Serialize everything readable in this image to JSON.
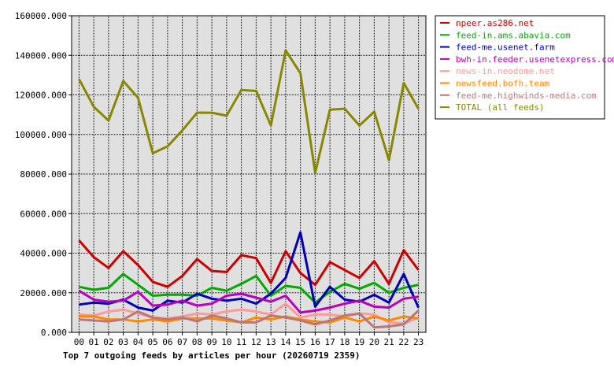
{
  "chart_data": {
    "type": "line",
    "title": "Top 7 outgoing feeds by articles per hour (20260719 2359)",
    "xlabel": "",
    "ylabel": "",
    "categories": [
      "00",
      "01",
      "02",
      "03",
      "04",
      "05",
      "06",
      "07",
      "08",
      "09",
      "10",
      "11",
      "12",
      "13",
      "14",
      "15",
      "16",
      "17",
      "18",
      "19",
      "20",
      "21",
      "22",
      "23"
    ],
    "ylim": [
      0,
      160000
    ],
    "yticks": [
      "0.000",
      "20000.000",
      "40000.000",
      "60000.000",
      "80000.000",
      "100000.000",
      "120000.000",
      "140000.000",
      "160000.000"
    ],
    "ytick_values": [
      0,
      20000,
      40000,
      60000,
      80000,
      100000,
      120000,
      140000,
      160000
    ],
    "grid": true,
    "legend_position": "right",
    "series": [
      {
        "name": "npeer.as286.net",
        "color": "#cc0000",
        "values": [
          46500,
          38000,
          32500,
          41000,
          34000,
          25500,
          23000,
          28500,
          37000,
          31000,
          30500,
          39000,
          37500,
          25000,
          41000,
          30000,
          24000,
          35500,
          31500,
          27500,
          36000,
          24500,
          41500,
          31500
        ]
      },
      {
        "name": "feed-in.ams.abavia.com",
        "color": "#00aa00",
        "values": [
          23000,
          21500,
          22500,
          29500,
          24000,
          18500,
          19000,
          19000,
          18500,
          22500,
          21000,
          24500,
          28500,
          18500,
          23500,
          22500,
          15000,
          20500,
          24500,
          22000,
          25000,
          20000,
          22500,
          24000
        ]
      },
      {
        "name": "feed-me.usenet.farm",
        "color": "#0000bb",
        "values": [
          14000,
          15000,
          14500,
          16500,
          12500,
          11000,
          16000,
          15000,
          19500,
          17000,
          16000,
          17000,
          14500,
          19500,
          27500,
          50500,
          13000,
          23000,
          16500,
          15500,
          19000,
          15000,
          29500,
          12500
        ]
      },
      {
        "name": "bwh-in.feeder.usenetexpress.com",
        "color": "#bb00bb",
        "values": [
          21000,
          16500,
          15500,
          16000,
          20500,
          13500,
          14000,
          16000,
          13500,
          14500,
          18500,
          19500,
          17500,
          15500,
          18500,
          10000,
          11000,
          12500,
          14500,
          16000,
          13000,
          12500,
          17000,
          18000
        ]
      },
      {
        "name": "news-in.neodome.net",
        "color": "#ff9999",
        "values": [
          9000,
          8500,
          10500,
          11500,
          9500,
          7500,
          7000,
          8000,
          9500,
          9000,
          10500,
          11500,
          10500,
          9000,
          14500,
          7500,
          9000,
          9000,
          8000,
          9500,
          9000,
          5000,
          4500,
          7500
        ]
      },
      {
        "name": "newsfeed.bofh.team",
        "color": "#ff8800",
        "values": [
          8000,
          8000,
          6500,
          6500,
          5500,
          6500,
          5500,
          7000,
          7000,
          7000,
          6000,
          5000,
          7500,
          6500,
          8000,
          6500,
          5500,
          5000,
          7500,
          5500,
          8000,
          6000,
          8000,
          7000
        ]
      },
      {
        "name": "feed-me.highwinds-media.com",
        "color": "#bb7777",
        "values": [
          6500,
          6000,
          5500,
          6500,
          10500,
          7500,
          6500,
          7500,
          5500,
          8500,
          7000,
          5000,
          5000,
          8500,
          7500,
          6000,
          4000,
          6000,
          8500,
          9500,
          2500,
          3000,
          4000,
          11000
        ]
      },
      {
        "name": "TOTAL (all feeds)",
        "color": "#888800",
        "values": [
          128000,
          114000,
          107000,
          127000,
          118500,
          90500,
          94000,
          102000,
          111000,
          111000,
          109500,
          122500,
          122000,
          104500,
          142500,
          131000,
          80500,
          112500,
          113000,
          104500,
          111500,
          87000,
          126000,
          113000
        ]
      }
    ]
  }
}
